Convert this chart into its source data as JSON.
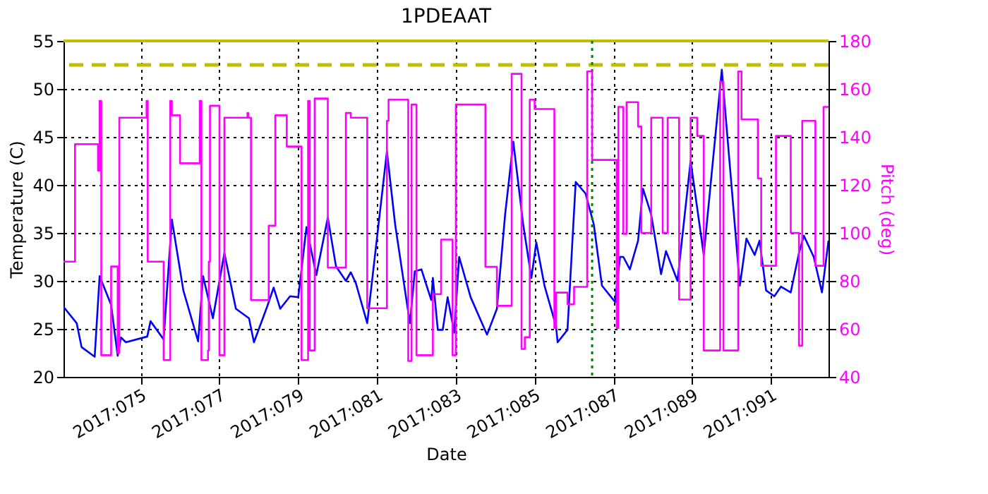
{
  "chart_data": {
    "type": "line",
    "title": "1PDEAAT",
    "xlabel": "Date",
    "ylabel": "Temperature (C)",
    "y2label": "Pitch (deg)",
    "xlim": [
      "2017-03-14T01:00",
      "2017-04-02T11:00"
    ],
    "xticks": [
      {
        "value": "2017-03-16",
        "label": "2017:075"
      },
      {
        "value": "2017-03-18",
        "label": "2017:077"
      },
      {
        "value": "2017-03-20",
        "label": "2017:079"
      },
      {
        "value": "2017-03-22",
        "label": "2017:081"
      },
      {
        "value": "2017-03-24",
        "label": "2017:083"
      },
      {
        "value": "2017-03-26",
        "label": "2017:085"
      },
      {
        "value": "2017-03-28",
        "label": "2017:087"
      },
      {
        "value": "2017-03-30",
        "label": "2017:089"
      },
      {
        "value": "2017-04-01",
        "label": "2017:091"
      }
    ],
    "ylim": [
      20,
      55
    ],
    "yticks": [
      20,
      25,
      30,
      35,
      40,
      45,
      50,
      55
    ],
    "y2lim": [
      40,
      180
    ],
    "y2ticks": [
      40,
      60,
      80,
      100,
      120,
      140,
      160,
      180
    ],
    "grid": true,
    "marker": "none",
    "line_style": "solid",
    "ref_lines": [
      {
        "axis": "y",
        "value": 52.5,
        "label": null,
        "color": "#bfbf00",
        "line_style": "dashed"
      },
      {
        "axis": "y",
        "value": 55,
        "label": null,
        "color": "#bfbf00",
        "line_style": "solid"
      },
      {
        "axis": "x",
        "value": "2017-03-27T11:00",
        "label": null,
        "color": "#008000",
        "line_style": "dotted"
      }
    ],
    "series": [
      {
        "color": "#0000ff",
        "x": [
          "2017-03-14T01:00",
          "2017-03-14T09:00",
          "2017-03-14T12:00",
          "2017-03-14T20:00",
          "2017-03-14T23:00",
          "2017-03-15T06:00",
          "2017-03-15T10:00",
          "2017-03-15T12:00",
          "2017-03-15T15:00",
          "2017-03-16T04:00",
          "2017-03-16T06:00",
          "2017-03-16T14:00",
          "2017-03-16T19:00",
          "2017-03-17T02:00",
          "2017-03-17T11:00",
          "2017-03-17T14:00",
          "2017-03-17T20:00",
          "2017-03-18T03:00",
          "2017-03-18T10:00",
          "2017-03-18T18:00",
          "2017-03-18T21:00",
          "2017-03-19T05:00",
          "2017-03-19T09:00",
          "2017-03-19T13:00",
          "2017-03-19T19:00",
          "2017-03-20T00:00",
          "2017-03-20T05:00",
          "2017-03-20T11:00",
          "2017-03-20T18:00",
          "2017-03-20T23:00",
          "2017-03-21T05:00",
          "2017-03-21T08:00",
          "2017-03-21T11:00",
          "2017-03-21T18:00",
          "2017-03-22T06:00",
          "2017-03-22T11:00",
          "2017-03-22T20:00",
          "2017-03-22T23:00",
          "2017-03-23T03:00",
          "2017-03-23T09:00",
          "2017-03-23T10:00",
          "2017-03-23T13:00",
          "2017-03-23T16:00",
          "2017-03-23T19:00",
          "2017-03-23T23:00",
          "2017-03-24T02:00",
          "2017-03-24T09:00",
          "2017-03-24T19:00",
          "2017-03-25T01:00",
          "2017-03-25T06:00",
          "2017-03-25T11:00",
          "2017-03-25T17:00",
          "2017-03-25T22:00",
          "2017-03-26T01:00",
          "2017-03-26T06:00",
          "2017-03-26T13:00",
          "2017-03-26T14:00",
          "2017-03-26T20:00",
          "2017-03-27T01:00",
          "2017-03-27T07:00",
          "2017-03-27T12:00",
          "2017-03-27T17:00",
          "2017-03-28T01:00",
          "2017-03-28T04:00",
          "2017-03-28T06:00",
          "2017-03-28T10:00",
          "2017-03-28T15:00",
          "2017-03-28T18:00",
          "2017-03-28T23:00",
          "2017-03-29T05:00",
          "2017-03-29T08:00",
          "2017-03-29T15:00",
          "2017-03-29T23:00",
          "2017-03-30T07:00",
          "2017-03-30T18:00",
          "2017-03-30T23:00",
          "2017-03-31T05:00",
          "2017-03-31T09:00",
          "2017-03-31T14:00",
          "2017-03-31T17:00",
          "2017-03-31T21:00",
          "2017-04-01T02:00",
          "2017-04-01T06:00",
          "2017-04-01T12:00",
          "2017-04-01T17:00",
          "2017-04-01T20:00",
          "2017-04-02T02:00",
          "2017-04-02T07:00",
          "2017-04-02T11:00"
        ],
        "values": [
          27.3,
          25.6,
          23.1,
          22.1,
          30.5,
          27.5,
          22.2,
          24.1,
          23.6,
          24.2,
          25.8,
          23.9,
          36.4,
          29.0,
          23.7,
          30.5,
          26.1,
          32.9,
          27.1,
          26.1,
          23.6,
          27.3,
          29.3,
          27.1,
          28.4,
          28.3,
          35.6,
          30.6,
          36.6,
          31.5,
          30.0,
          30.9,
          29.8,
          25.6,
          43.5,
          35.9,
          25.6,
          31.0,
          31.2,
          28.0,
          30.3,
          24.9,
          24.9,
          28.3,
          24.6,
          32.5,
          28.3,
          24.4,
          27.1,
          36.9,
          44.5,
          35.9,
          30.3,
          34.0,
          29.5,
          25.3,
          23.6,
          24.9,
          40.3,
          39.1,
          35.9,
          29.5,
          27.8,
          32.5,
          32.5,
          31.2,
          34.2,
          39.6,
          36.9,
          30.7,
          33.1,
          30.0,
          42.5,
          32.7,
          52.0,
          41.8,
          29.5,
          34.4,
          32.7,
          34.2,
          29.0,
          28.4,
          29.4,
          28.8,
          32.9,
          34.7,
          32.5,
          28.8,
          34.2
        ]
      },
      {
        "color": "#ff00ff",
        "axis": "y2",
        "x": [
          "2017-03-14T01:00",
          "2017-03-14T08:00",
          "2017-03-14T08:00",
          "2017-03-14T22:00",
          "2017-03-14T22:00",
          "2017-03-14T23:00",
          "2017-03-14T23:00",
          "2017-03-15T00:00",
          "2017-03-15T00:00",
          "2017-03-15T06:00",
          "2017-03-15T06:00",
          "2017-03-15T10:00",
          "2017-03-15T10:00",
          "2017-03-15T11:00",
          "2017-03-15T11:00",
          "2017-03-16T03:36",
          "2017-03-16T03:36",
          "2017-03-16T04:19",
          "2017-03-16T04:19",
          "2017-03-16T14:00",
          "2017-03-16T14:00",
          "2017-03-16T18:00",
          "2017-03-16T18:00",
          "2017-03-16T19:00",
          "2017-03-16T19:00",
          "2017-03-17T00:00",
          "2017-03-17T00:00",
          "2017-03-17T12:00",
          "2017-03-17T12:00",
          "2017-03-17T13:00",
          "2017-03-17T13:00",
          "2017-03-17T17:00",
          "2017-03-17T17:00",
          "2017-03-17T17:31",
          "2017-03-17T17:31",
          "2017-03-17T18:14",
          "2017-03-17T18:14",
          "2017-03-18T00:00",
          "2017-03-18T00:00",
          "2017-03-18T03:00",
          "2017-03-18T03:00",
          "2017-03-18T17:02",
          "2017-03-18T17:02",
          "2017-03-18T17:31",
          "2017-03-18T17:31",
          "2017-03-18T19:12",
          "2017-03-18T19:12",
          "2017-03-19T06:00",
          "2017-03-19T06:00",
          "2017-03-19T10:00",
          "2017-03-19T10:00",
          "2017-03-19T17:00",
          "2017-03-19T17:00",
          "2017-03-20T02:00",
          "2017-03-20T02:00",
          "2017-03-20T06:00",
          "2017-03-20T06:00",
          "2017-03-20T07:00",
          "2017-03-20T07:00",
          "2017-03-20T10:00",
          "2017-03-20T10:00",
          "2017-03-20T18:00",
          "2017-03-20T18:00",
          "2017-03-21T05:00",
          "2017-03-21T05:00",
          "2017-03-21T08:00",
          "2017-03-21T08:00",
          "2017-03-21T18:00",
          "2017-03-21T18:00",
          "2017-03-22T06:00",
          "2017-03-22T06:00",
          "2017-03-22T07:00",
          "2017-03-22T07:00",
          "2017-03-22T19:00",
          "2017-03-22T19:00",
          "2017-03-22T21:00",
          "2017-03-22T21:00",
          "2017-03-23T00:00",
          "2017-03-23T00:00",
          "2017-03-23T10:00",
          "2017-03-23T10:00",
          "2017-03-23T15:00",
          "2017-03-23T15:00",
          "2017-03-23T22:00",
          "2017-03-23T22:00",
          "2017-03-24T00:00",
          "2017-03-24T00:00",
          "2017-03-24T18:00",
          "2017-03-24T18:00",
          "2017-03-25T01:00",
          "2017-03-25T01:00",
          "2017-03-25T10:00",
          "2017-03-25T10:00",
          "2017-03-25T16:00",
          "2017-03-25T16:00",
          "2017-03-25T18:00",
          "2017-03-25T18:00",
          "2017-03-25T21:00",
          "2017-03-25T21:00",
          "2017-03-26T00:00",
          "2017-03-26T00:00",
          "2017-03-26T12:00",
          "2017-03-26T12:00",
          "2017-03-26T13:00",
          "2017-03-26T13:00",
          "2017-03-26T20:00",
          "2017-03-26T20:00",
          "2017-03-27T00:00",
          "2017-03-27T00:00",
          "2017-03-27T08:00",
          "2017-03-27T08:00",
          "2017-03-27T11:00",
          "2017-03-27T11:00",
          "2017-03-28T02:00",
          "2017-03-28T02:00",
          "2017-03-28T03:00",
          "2017-03-28T03:00",
          "2017-03-28T06:00",
          "2017-03-28T06:00",
          "2017-03-28T08:00",
          "2017-03-28T08:00",
          "2017-03-28T15:00",
          "2017-03-28T15:00",
          "2017-03-28T17:00",
          "2017-03-28T17:00",
          "2017-03-28T23:00",
          "2017-03-28T23:00",
          "2017-03-29T06:00",
          "2017-03-29T06:00",
          "2017-03-29T09:00",
          "2017-03-29T09:00",
          "2017-03-29T16:00",
          "2017-03-29T16:00",
          "2017-03-29T23:00",
          "2017-03-29T23:00",
          "2017-03-30T03:00",
          "2017-03-30T03:00",
          "2017-03-30T07:00",
          "2017-03-30T07:00",
          "2017-03-30T17:00",
          "2017-03-30T17:00",
          "2017-03-30T19:00",
          "2017-03-30T19:00",
          "2017-03-31T04:00",
          "2017-03-31T04:00",
          "2017-03-31T06:00",
          "2017-03-31T06:00",
          "2017-03-31T16:00",
          "2017-03-31T16:00",
          "2017-03-31T18:00",
          "2017-03-31T18:00",
          "2017-04-01T03:00",
          "2017-04-01T03:00",
          "2017-04-01T12:00",
          "2017-04-01T12:00",
          "2017-04-01T17:00",
          "2017-04-01T17:00",
          "2017-04-01T19:00",
          "2017-04-01T19:00",
          "2017-04-02T03:00",
          "2017-04-02T03:00",
          "2017-04-02T08:00",
          "2017-04-02T08:00",
          "2017-04-02T11:00"
        ],
        "values": [
          88,
          88,
          137,
          137,
          126,
          126,
          155,
          155,
          49,
          49,
          86,
          86,
          50,
          50,
          148,
          148,
          155,
          155,
          88,
          88,
          47,
          47,
          155,
          155,
          149,
          149,
          129,
          129,
          155,
          155,
          47,
          47,
          51,
          51,
          88,
          88,
          153,
          153,
          49,
          49,
          148,
          148,
          150,
          150,
          148,
          148,
          72,
          72,
          103,
          103,
          149,
          149,
          136,
          136,
          47,
          47,
          155,
          155,
          51,
          51,
          156,
          156,
          85.5,
          85.5,
          150,
          150,
          148,
          148,
          68.6,
          68.6,
          146.7,
          146.7,
          155.5,
          155.5,
          46.6,
          46.6,
          153.5,
          153.5,
          49,
          49,
          74.5,
          74.5,
          97.2,
          97.2,
          49,
          49,
          153.5,
          153.5,
          85.9,
          85.9,
          69.6,
          69.6,
          166.3,
          166.3,
          51.6,
          51.6,
          56.5,
          56.5,
          155.5,
          155.5,
          151.6,
          151.6,
          60.4,
          60.4,
          75.1,
          75.1,
          70.2,
          70.2,
          77.5,
          77.5,
          167.3,
          167.3,
          130.4,
          130.4,
          60.4,
          60.4,
          152.5,
          152.5,
          99.6,
          99.6,
          154.5,
          154.5,
          144.3,
          144.3,
          100,
          100,
          148,
          148,
          100,
          100,
          148,
          148,
          72.2,
          72.2,
          148,
          148,
          140.4,
          140.4,
          51,
          51,
          163,
          163,
          51,
          51,
          167.3,
          167.3,
          147.3,
          147.3,
          122.7,
          122.7,
          86.3,
          86.3,
          140.4,
          140.4,
          100,
          100,
          53,
          53,
          146.7,
          146.7,
          86.3,
          86.3,
          152.5,
          152.5
        ]
      }
    ]
  }
}
